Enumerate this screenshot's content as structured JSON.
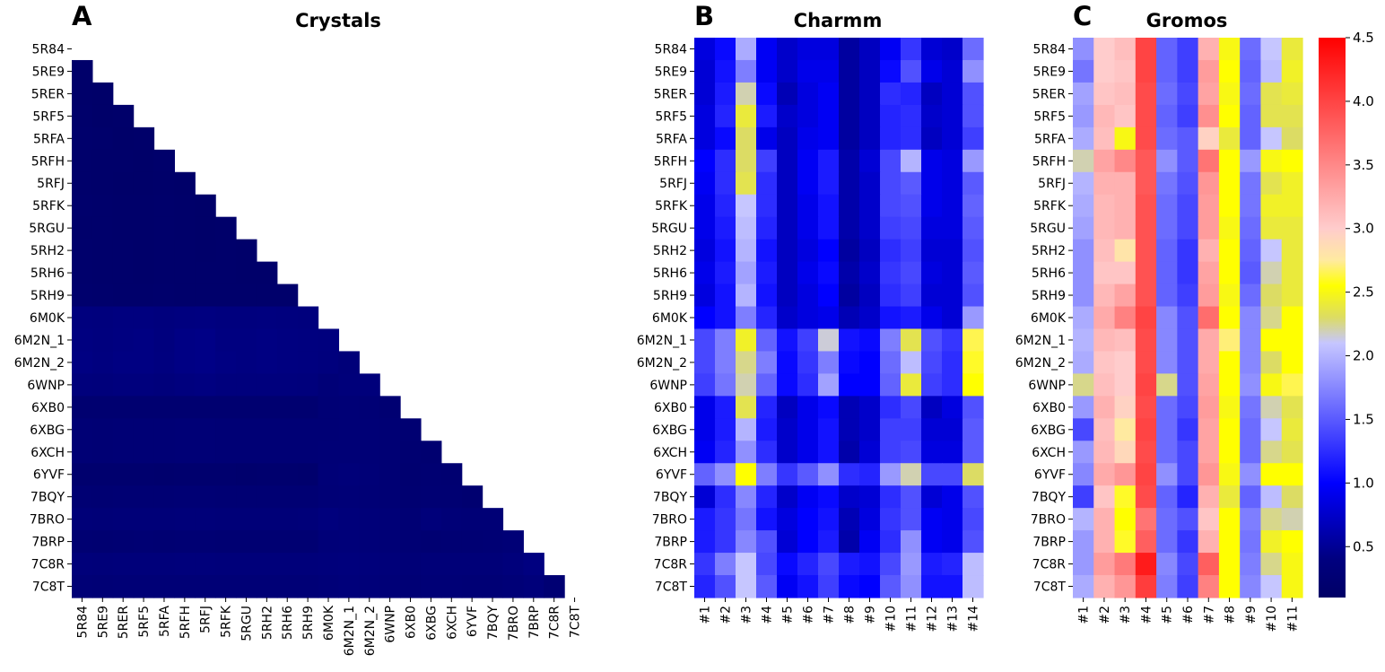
{
  "chart_data": [
    {
      "panel": "A",
      "type": "heatmap",
      "title": "Crystals",
      "shape": "lower-triangle",
      "rows": [
        "5R84",
        "5RE9",
        "5RER",
        "5RF5",
        "5RFA",
        "5RFH",
        "5RFJ",
        "5RFK",
        "5RGU",
        "5RH2",
        "5RH6",
        "5RH9",
        "6M0K",
        "6M2N_1",
        "6M2N_2",
        "6WNP",
        "6XB0",
        "6XBG",
        "6XCH",
        "6YVF",
        "7BQY",
        "7BRO",
        "7BRP",
        "7C8R",
        "7C8T"
      ],
      "columns": [
        "5R84",
        "5RE9",
        "5RER",
        "5RF5",
        "5RFA",
        "5RFH",
        "5RFJ",
        "5RFK",
        "5RGU",
        "5RH2",
        "5RH6",
        "5RH9",
        "6M0K",
        "6M2N_1",
        "6M2N_2",
        "6WNP",
        "6XB0",
        "6XBG",
        "6XCH",
        "6YVF",
        "7BQY",
        "7BRO",
        "7BRP",
        "7C8R",
        "7C8T"
      ],
      "values": [
        [],
        [
          0.15
        ],
        [
          0.15,
          0.14
        ],
        [
          0.16,
          0.14,
          0.15
        ],
        [
          0.17,
          0.16,
          0.14,
          0.15
        ],
        [
          0.16,
          0.15,
          0.15,
          0.14,
          0.16
        ],
        [
          0.16,
          0.15,
          0.14,
          0.14,
          0.15,
          0.14
        ],
        [
          0.17,
          0.16,
          0.15,
          0.15,
          0.16,
          0.15,
          0.14
        ],
        [
          0.16,
          0.16,
          0.15,
          0.15,
          0.16,
          0.15,
          0.14,
          0.15
        ],
        [
          0.17,
          0.16,
          0.16,
          0.15,
          0.16,
          0.16,
          0.15,
          0.16,
          0.15
        ],
        [
          0.17,
          0.16,
          0.16,
          0.15,
          0.16,
          0.16,
          0.16,
          0.16,
          0.15,
          0.15
        ],
        [
          0.18,
          0.17,
          0.16,
          0.16,
          0.17,
          0.16,
          0.16,
          0.16,
          0.16,
          0.16,
          0.16
        ],
        [
          0.38,
          0.36,
          0.39,
          0.39,
          0.37,
          0.39,
          0.4,
          0.38,
          0.38,
          0.39,
          0.38,
          0.37
        ],
        [
          0.4,
          0.38,
          0.4,
          0.41,
          0.38,
          0.42,
          0.43,
          0.4,
          0.4,
          0.41,
          0.4,
          0.39,
          0.38
        ],
        [
          0.41,
          0.39,
          0.41,
          0.41,
          0.39,
          0.42,
          0.43,
          0.41,
          0.4,
          0.41,
          0.4,
          0.39,
          0.36,
          0.32
        ],
        [
          0.35,
          0.34,
          0.36,
          0.37,
          0.34,
          0.38,
          0.4,
          0.37,
          0.36,
          0.37,
          0.36,
          0.35,
          0.3,
          0.33,
          0.34
        ],
        [
          0.22,
          0.21,
          0.22,
          0.22,
          0.22,
          0.22,
          0.22,
          0.22,
          0.22,
          0.22,
          0.22,
          0.22,
          0.27,
          0.28,
          0.27,
          0.24
        ],
        [
          0.27,
          0.26,
          0.27,
          0.27,
          0.27,
          0.28,
          0.28,
          0.27,
          0.27,
          0.27,
          0.27,
          0.27,
          0.27,
          0.29,
          0.28,
          0.26,
          0.24
        ],
        [
          0.27,
          0.26,
          0.27,
          0.27,
          0.27,
          0.28,
          0.28,
          0.27,
          0.27,
          0.27,
          0.27,
          0.27,
          0.28,
          0.29,
          0.28,
          0.26,
          0.23,
          0.22
        ],
        [
          0.19,
          0.19,
          0.19,
          0.19,
          0.18,
          0.19,
          0.19,
          0.19,
          0.18,
          0.19,
          0.19,
          0.18,
          0.3,
          0.32,
          0.3,
          0.26,
          0.22,
          0.24,
          0.23
        ],
        [
          0.25,
          0.24,
          0.25,
          0.25,
          0.25,
          0.26,
          0.26,
          0.25,
          0.25,
          0.25,
          0.25,
          0.25,
          0.28,
          0.3,
          0.29,
          0.26,
          0.23,
          0.25,
          0.24,
          0.22
        ],
        [
          0.31,
          0.3,
          0.31,
          0.31,
          0.31,
          0.32,
          0.32,
          0.31,
          0.31,
          0.31,
          0.31,
          0.32,
          0.36,
          0.33,
          0.32,
          0.3,
          0.26,
          0.33,
          0.3,
          0.28,
          0.29
        ],
        [
          0.24,
          0.23,
          0.24,
          0.25,
          0.24,
          0.25,
          0.25,
          0.24,
          0.24,
          0.24,
          0.24,
          0.24,
          0.31,
          0.32,
          0.31,
          0.28,
          0.26,
          0.24,
          0.25,
          0.25,
          0.26,
          0.29
        ],
        [
          0.33,
          0.32,
          0.33,
          0.33,
          0.33,
          0.34,
          0.34,
          0.33,
          0.33,
          0.33,
          0.33,
          0.33,
          0.34,
          0.35,
          0.34,
          0.32,
          0.3,
          0.31,
          0.31,
          0.31,
          0.31,
          0.34,
          0.4
        ],
        [
          0.28,
          0.27,
          0.28,
          0.28,
          0.28,
          0.29,
          0.29,
          0.28,
          0.28,
          0.28,
          0.28,
          0.28,
          0.31,
          0.33,
          0.32,
          0.3,
          0.27,
          0.28,
          0.28,
          0.27,
          0.27,
          0.3,
          0.33,
          0.25
        ]
      ]
    },
    {
      "panel": "B",
      "type": "heatmap",
      "title": "Charmm",
      "rows": [
        "5R84",
        "5RE9",
        "5RER",
        "5RF5",
        "5RFA",
        "5RFH",
        "5RFJ",
        "5RFK",
        "5RGU",
        "5RH2",
        "5RH6",
        "5RH9",
        "6M0K",
        "6M2N_1",
        "6M2N_2",
        "6WNP",
        "6XB0",
        "6XBG",
        "6XCH",
        "6YVF",
        "7BQY",
        "7BRO",
        "7BRP",
        "7C8R",
        "7C8T"
      ],
      "columns": [
        "#1",
        "#2",
        "#3",
        "#4",
        "#5",
        "#6",
        "#7",
        "#8",
        "#9",
        "#10",
        "#11",
        "#12",
        "#13",
        "#14"
      ],
      "values": [
        [
          0.85,
          1.05,
          1.95,
          0.95,
          0.75,
          0.85,
          0.85,
          0.55,
          0.7,
          0.95,
          1.3,
          0.8,
          0.75,
          1.6
        ],
        [
          0.8,
          1.1,
          1.7,
          0.95,
          0.75,
          0.9,
          0.9,
          0.55,
          0.7,
          1.05,
          1.45,
          0.9,
          0.8,
          1.8
        ],
        [
          0.8,
          1.15,
          2.2,
          1.05,
          0.65,
          0.85,
          0.95,
          0.55,
          0.7,
          1.25,
          1.2,
          0.7,
          0.8,
          1.45
        ],
        [
          0.85,
          1.2,
          2.4,
          1.15,
          0.75,
          0.85,
          0.95,
          0.55,
          0.7,
          1.2,
          1.25,
          0.75,
          0.8,
          1.45
        ],
        [
          0.85,
          1.05,
          2.3,
          0.9,
          0.7,
          0.9,
          0.95,
          0.55,
          0.7,
          1.2,
          1.25,
          0.7,
          0.8,
          1.35
        ],
        [
          1.0,
          1.25,
          2.3,
          1.35,
          0.7,
          0.95,
          1.15,
          0.6,
          0.8,
          1.4,
          2.0,
          0.9,
          0.85,
          1.85
        ],
        [
          0.95,
          1.25,
          2.35,
          1.25,
          0.7,
          0.95,
          1.15,
          0.6,
          0.75,
          1.4,
          1.5,
          0.9,
          0.85,
          1.5
        ],
        [
          0.9,
          1.2,
          2.1,
          1.25,
          0.7,
          0.9,
          1.1,
          0.6,
          0.75,
          1.4,
          1.45,
          0.9,
          0.85,
          1.55
        ],
        [
          0.9,
          1.15,
          2.05,
          1.2,
          0.7,
          0.9,
          1.1,
          0.6,
          0.75,
          1.35,
          1.4,
          0.85,
          0.85,
          1.5
        ],
        [
          0.85,
          1.1,
          2.0,
          1.1,
          0.7,
          0.85,
          1.0,
          0.55,
          0.7,
          1.25,
          1.35,
          0.8,
          0.8,
          1.45
        ],
        [
          0.9,
          1.15,
          1.9,
          1.15,
          0.7,
          0.9,
          1.05,
          0.6,
          0.75,
          1.3,
          1.4,
          0.85,
          0.8,
          1.5
        ],
        [
          0.85,
          1.1,
          2.0,
          1.1,
          0.7,
          0.85,
          1.0,
          0.55,
          0.7,
          1.25,
          1.35,
          0.8,
          0.8,
          1.45
        ],
        [
          1.0,
          1.1,
          1.7,
          1.2,
          0.75,
          0.85,
          0.9,
          0.65,
          0.75,
          1.1,
          1.15,
          0.9,
          0.8,
          1.85
        ],
        [
          1.4,
          1.7,
          2.45,
          1.55,
          1.1,
          1.35,
          2.15,
          1.1,
          1.05,
          1.7,
          2.35,
          1.45,
          1.3,
          2.65
        ],
        [
          1.4,
          1.7,
          2.25,
          1.7,
          1.05,
          1.3,
          1.7,
          1.05,
          1.0,
          1.6,
          2.05,
          1.4,
          1.25,
          2.6
        ],
        [
          1.35,
          1.65,
          2.2,
          1.55,
          1.05,
          1.25,
          1.9,
          1.0,
          1.0,
          1.55,
          2.4,
          1.35,
          1.25,
          2.55
        ],
        [
          0.9,
          1.15,
          2.35,
          1.2,
          0.7,
          0.9,
          1.05,
          0.65,
          0.75,
          1.25,
          1.4,
          0.7,
          0.85,
          1.45
        ],
        [
          0.9,
          1.15,
          2.0,
          1.15,
          0.75,
          0.9,
          1.1,
          0.65,
          0.75,
          1.35,
          1.35,
          0.8,
          0.8,
          1.5
        ],
        [
          0.95,
          1.2,
          1.8,
          1.25,
          0.75,
          0.9,
          1.1,
          0.6,
          0.8,
          1.35,
          1.4,
          0.85,
          0.85,
          1.5
        ],
        [
          1.55,
          1.8,
          2.55,
          1.7,
          1.3,
          1.5,
          1.8,
          1.25,
          1.2,
          1.85,
          2.2,
          1.4,
          1.4,
          2.3
        ],
        [
          0.8,
          1.25,
          1.75,
          1.2,
          0.75,
          0.95,
          1.05,
          0.75,
          0.8,
          1.25,
          1.45,
          0.8,
          0.9,
          1.45
        ],
        [
          1.15,
          1.3,
          1.65,
          1.1,
          0.85,
          1.0,
          1.1,
          0.65,
          0.85,
          1.3,
          1.45,
          0.95,
          0.9,
          1.4
        ],
        [
          1.15,
          1.3,
          1.75,
          1.45,
          0.8,
          1.0,
          1.15,
          0.6,
          0.95,
          1.25,
          1.8,
          0.95,
          0.9,
          1.45
        ],
        [
          1.3,
          1.7,
          2.1,
          1.4,
          1.05,
          1.2,
          1.4,
          1.15,
          1.1,
          1.4,
          1.85,
          1.15,
          1.2,
          2.05
        ],
        [
          1.2,
          1.45,
          2.1,
          1.5,
          0.95,
          1.1,
          1.35,
          1.05,
          1.0,
          1.5,
          1.8,
          1.1,
          1.1,
          2.05
        ]
      ]
    },
    {
      "panel": "C",
      "type": "heatmap",
      "title": "Gromos",
      "rows": [
        "5R84",
        "5RE9",
        "5RER",
        "5RF5",
        "5RFA",
        "5RFH",
        "5RFJ",
        "5RFK",
        "5RGU",
        "5RH2",
        "5RH6",
        "5RH9",
        "6M0K",
        "6M2N_1",
        "6M2N_2",
        "6WNP",
        "6XB0",
        "6XBG",
        "6XCH",
        "6YVF",
        "7BQY",
        "7BRO",
        "7BRP",
        "7C8R",
        "7C8T"
      ],
      "columns": [
        "#1",
        "#2",
        "#3",
        "#4",
        "#5",
        "#6",
        "#7",
        "#8",
        "#9",
        "#10",
        "#11"
      ],
      "values": [
        [
          1.8,
          3.0,
          3.1,
          4.0,
          1.55,
          1.35,
          3.2,
          2.5,
          1.6,
          2.1,
          2.4
        ],
        [
          1.65,
          3.0,
          3.05,
          4.0,
          1.55,
          1.35,
          3.35,
          2.55,
          1.55,
          2.05,
          2.45
        ],
        [
          1.9,
          3.05,
          3.1,
          3.95,
          1.6,
          1.4,
          3.3,
          2.5,
          1.6,
          2.35,
          2.4
        ],
        [
          1.85,
          3.15,
          3.05,
          3.95,
          1.55,
          1.35,
          3.45,
          2.55,
          1.55,
          2.35,
          2.35
        ],
        [
          1.95,
          3.1,
          2.5,
          3.95,
          1.6,
          1.5,
          2.95,
          2.4,
          1.55,
          2.1,
          2.3
        ],
        [
          2.2,
          3.3,
          3.5,
          3.85,
          1.8,
          1.5,
          3.65,
          2.55,
          1.85,
          2.5,
          2.55
        ],
        [
          2.0,
          3.2,
          3.2,
          3.85,
          1.65,
          1.45,
          3.4,
          2.55,
          1.65,
          2.35,
          2.45
        ],
        [
          1.95,
          3.15,
          3.2,
          3.9,
          1.6,
          1.4,
          3.35,
          2.55,
          1.65,
          2.45,
          2.45
        ],
        [
          1.9,
          3.15,
          3.2,
          3.9,
          1.6,
          1.4,
          3.35,
          2.5,
          1.6,
          2.4,
          2.4
        ],
        [
          1.8,
          3.1,
          2.8,
          3.9,
          1.55,
          1.3,
          3.2,
          2.55,
          1.55,
          2.1,
          2.4
        ],
        [
          1.8,
          3.05,
          3.05,
          3.9,
          1.55,
          1.3,
          3.3,
          2.55,
          1.5,
          2.2,
          2.4
        ],
        [
          1.8,
          3.15,
          3.3,
          3.9,
          1.55,
          1.35,
          3.35,
          2.5,
          1.6,
          2.3,
          2.4
        ],
        [
          1.95,
          3.25,
          3.55,
          4.0,
          1.75,
          1.45,
          3.7,
          2.55,
          1.75,
          2.25,
          2.55
        ],
        [
          2.0,
          3.15,
          3.1,
          3.95,
          1.75,
          1.45,
          3.25,
          2.7,
          1.75,
          2.55,
          2.55
        ],
        [
          1.95,
          3.05,
          3.0,
          3.95,
          1.75,
          1.45,
          3.25,
          2.55,
          1.75,
          2.3,
          2.55
        ],
        [
          2.25,
          3.1,
          3.0,
          4.0,
          2.25,
          1.45,
          3.3,
          2.55,
          1.8,
          2.5,
          2.65
        ],
        [
          1.85,
          3.2,
          2.95,
          3.95,
          1.6,
          1.4,
          3.35,
          2.5,
          1.65,
          2.2,
          2.35
        ],
        [
          1.4,
          3.1,
          2.75,
          4.0,
          1.6,
          1.3,
          3.3,
          2.55,
          1.6,
          2.1,
          2.4
        ],
        [
          1.85,
          3.15,
          2.9,
          3.95,
          1.6,
          1.4,
          3.3,
          2.55,
          1.6,
          2.25,
          2.35
        ],
        [
          1.75,
          3.25,
          3.4,
          4.0,
          1.8,
          1.4,
          3.4,
          2.5,
          1.8,
          2.55,
          2.55
        ],
        [
          1.35,
          3.05,
          2.6,
          3.95,
          1.55,
          1.2,
          3.2,
          2.4,
          1.55,
          2.05,
          2.3
        ],
        [
          2.0,
          3.2,
          2.55,
          3.65,
          1.6,
          1.45,
          3.05,
          2.55,
          1.7,
          2.25,
          2.2
        ],
        [
          1.85,
          3.2,
          2.6,
          3.8,
          1.6,
          1.3,
          3.2,
          2.55,
          1.65,
          2.45,
          2.55
        ],
        [
          1.85,
          3.35,
          3.6,
          4.3,
          1.75,
          1.4,
          3.8,
          2.55,
          1.7,
          2.25,
          2.5
        ],
        [
          1.95,
          3.2,
          3.4,
          4.05,
          1.7,
          1.35,
          3.55,
          2.55,
          1.75,
          2.1,
          2.5
        ]
      ]
    }
  ],
  "colorbar": {
    "min": 0.1,
    "max": 4.5,
    "ticks": [
      "4.5",
      "4.0",
      "3.5",
      "3.0",
      "2.5",
      "2.0",
      "1.5",
      "1.0",
      "0.5"
    ],
    "tick_values": [
      4.5,
      4.0,
      3.5,
      3.0,
      2.5,
      2.0,
      1.5,
      1.0,
      0.5
    ],
    "stops": [
      {
        "v": 0.1,
        "color": "#000066"
      },
      {
        "v": 0.4,
        "color": "#000080"
      },
      {
        "v": 1.0,
        "color": "#0000ff"
      },
      {
        "v": 2.1,
        "color": "#c6c6ff"
      },
      {
        "v": 2.3,
        "color": "#dcdc64"
      },
      {
        "v": 2.55,
        "color": "#ffff00"
      },
      {
        "v": 2.75,
        "color": "#ffeaa0"
      },
      {
        "v": 3.0,
        "color": "#ffcccc"
      },
      {
        "v": 4.5,
        "color": "#ff0000"
      }
    ]
  }
}
